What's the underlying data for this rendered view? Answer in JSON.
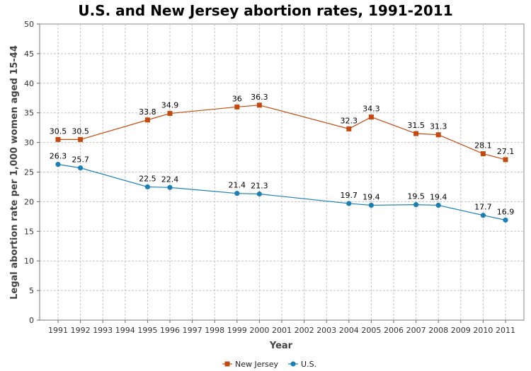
{
  "chart_data": {
    "type": "line",
    "title": "U.S. and New Jersey abortion rates, 1991-2011",
    "xlabel": "Year",
    "ylabel": "Legal abortion rate per 1,000 women aged 15-44",
    "x": [
      "1991",
      "1992",
      "1993",
      "1994",
      "1995",
      "1996",
      "1997",
      "1998",
      "1999",
      "2000",
      "2001",
      "2002",
      "2003",
      "2004",
      "2005",
      "2006",
      "2007",
      "2008",
      "2009",
      "2010",
      "2011"
    ],
    "ylim": [
      0,
      50
    ],
    "yticks": [
      0,
      5,
      10,
      15,
      20,
      25,
      30,
      35,
      40,
      45,
      50
    ],
    "grid": true,
    "legend_position": "bottom",
    "series": [
      {
        "name": "New Jersey",
        "color": "#c24a10",
        "marker": "square",
        "points": [
          {
            "x": "1991",
            "y": 30.5,
            "label": "30.5"
          },
          {
            "x": "1992",
            "y": 30.5,
            "label": "30.5"
          },
          {
            "x": "1995",
            "y": 33.8,
            "label": "33.8"
          },
          {
            "x": "1996",
            "y": 34.9,
            "label": "34.9"
          },
          {
            "x": "1999",
            "y": 36,
            "label": "36"
          },
          {
            "x": "2000",
            "y": 36.3,
            "label": "36.3"
          },
          {
            "x": "2004",
            "y": 32.3,
            "label": "32.3"
          },
          {
            "x": "2005",
            "y": 34.3,
            "label": "34.3"
          },
          {
            "x": "2007",
            "y": 31.5,
            "label": "31.5"
          },
          {
            "x": "2008",
            "y": 31.3,
            "label": "31.3"
          },
          {
            "x": "2010",
            "y": 28.1,
            "label": "28.1"
          },
          {
            "x": "2011",
            "y": 27.1,
            "label": "27.1"
          }
        ]
      },
      {
        "name": "U.S.",
        "color": "#1a7fb5",
        "marker": "circle",
        "points": [
          {
            "x": "1991",
            "y": 26.3,
            "label": "26.3"
          },
          {
            "x": "1992",
            "y": 25.7,
            "label": "25.7"
          },
          {
            "x": "1995",
            "y": 22.5,
            "label": "22.5"
          },
          {
            "x": "1996",
            "y": 22.4,
            "label": "22.4"
          },
          {
            "x": "1999",
            "y": 21.4,
            "label": "21.4"
          },
          {
            "x": "2000",
            "y": 21.3,
            "label": "21.3"
          },
          {
            "x": "2004",
            "y": 19.7,
            "label": "19.7"
          },
          {
            "x": "2005",
            "y": 19.4,
            "label": "19.4"
          },
          {
            "x": "2007",
            "y": 19.5,
            "label": "19.5"
          },
          {
            "x": "2008",
            "y": 19.4,
            "label": "19.4"
          },
          {
            "x": "2010",
            "y": 17.7,
            "label": "17.7"
          },
          {
            "x": "2011",
            "y": 16.9,
            "label": "16.9"
          }
        ]
      }
    ]
  }
}
